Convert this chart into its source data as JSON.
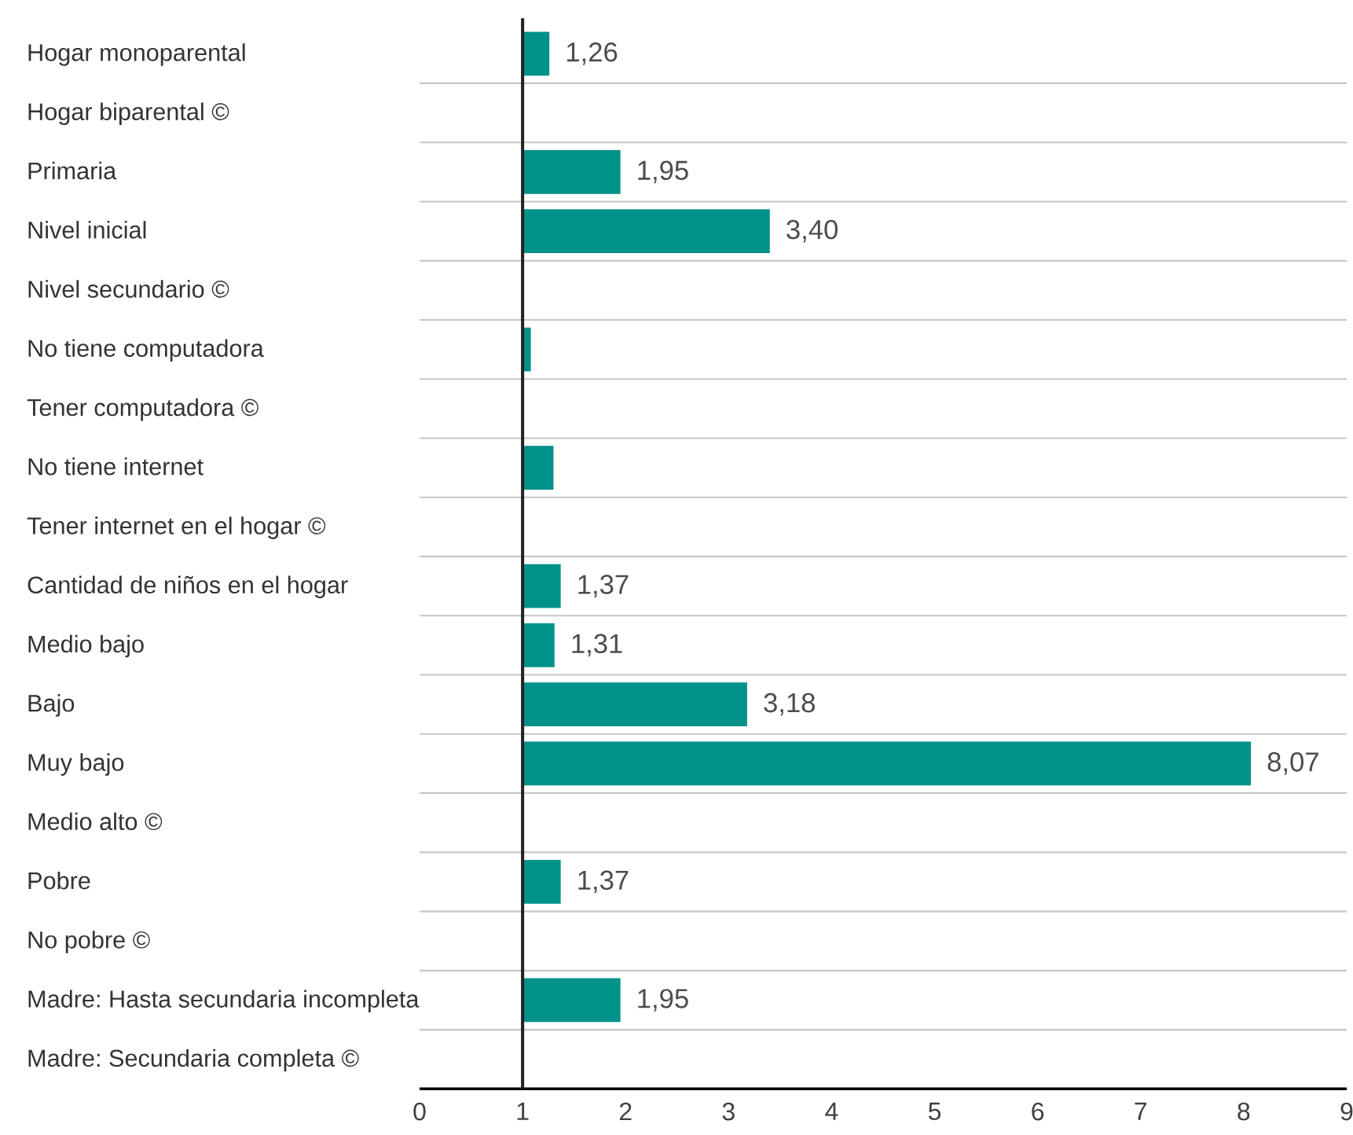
{
  "chart_data": {
    "type": "bar",
    "orientation": "horizontal",
    "categories": [
      "Hogar monoparental",
      "Hogar biparental ©",
      "Primaria",
      "Nivel inicial",
      "Nivel secundario ©",
      "No tiene computadora",
      "Tener computadora ©",
      "No tiene internet",
      "Tener internet en el hogar ©",
      "Cantidad de niños en el hogar",
      "Medio bajo",
      "Bajo",
      "Muy bajo",
      "Medio alto ©",
      "Pobre",
      "No pobre ©",
      "Madre: Hasta secundaria incompleta",
      "Madre: Secundaria completa ©"
    ],
    "base": [
      1,
      null,
      1,
      1,
      null,
      1,
      null,
      1,
      null,
      1,
      1,
      1,
      1,
      null,
      1,
      null,
      1,
      null
    ],
    "values": [
      0.26,
      null,
      0.95,
      2.4,
      null,
      0.08,
      null,
      0.3,
      null,
      0.37,
      0.31,
      2.18,
      7.07,
      null,
      0.37,
      null,
      0.95,
      null
    ],
    "value_labels": [
      "1,26",
      null,
      "1,95",
      "3,40",
      null,
      null,
      null,
      null,
      null,
      "1,37",
      "1,31",
      "3,18",
      "8,07",
      null,
      "1,37",
      null,
      "1,95",
      null
    ],
    "color": "#00918a",
    "xlim": [
      0,
      9
    ],
    "xticks": [
      0,
      1,
      2,
      3,
      4,
      5,
      6,
      7,
      8,
      9
    ],
    "ref_lines": [
      {
        "axis": "x",
        "value": 1,
        "color": "#222222"
      }
    ],
    "grid": "y"
  }
}
